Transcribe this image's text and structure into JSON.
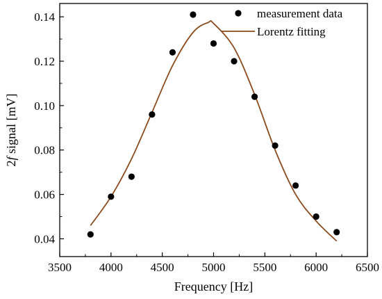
{
  "chart_data": {
    "type": "scatter",
    "xlabel": "Frequency [Hz]",
    "ylabel_prefix": "2",
    "ylabel_italic": "f",
    "ylabel_suffix": " signal [mV]",
    "xlim": [
      3500,
      6500
    ],
    "ylim": [
      0.032,
      0.146
    ],
    "xticks": [
      3500,
      4000,
      4500,
      5000,
      5500,
      6000,
      6500
    ],
    "yticks": [
      0.04,
      0.06,
      0.08,
      0.1,
      0.12,
      0.14
    ],
    "ytick_labels": [
      "0.04",
      "0.06",
      "0.08",
      "0.10",
      "0.12",
      "0.14"
    ],
    "grid": false,
    "legend_position": "top-right",
    "series": [
      {
        "name": "measurement data",
        "kind": "scatter",
        "color": "#000000",
        "x": [
          3800,
          4000,
          4200,
          4400,
          4600,
          4800,
          5000,
          5200,
          5400,
          5600,
          5800,
          6000,
          6200
        ],
        "y": [
          0.042,
          0.059,
          0.068,
          0.096,
          0.124,
          0.141,
          0.128,
          0.12,
          0.104,
          0.082,
          0.064,
          0.05,
          0.043
        ]
      },
      {
        "name": "Lorentz fitting",
        "kind": "line",
        "color": "#8B4A1C",
        "x": [
          3800,
          4000,
          4200,
          4400,
          4600,
          4800,
          4950,
          5000,
          5200,
          5400,
          5600,
          5800,
          6000,
          6200
        ],
        "y": [
          0.046,
          0.059,
          0.076,
          0.097,
          0.118,
          0.133,
          0.1375,
          0.137,
          0.126,
          0.105,
          0.08,
          0.06,
          0.048,
          0.039
        ]
      }
    ]
  }
}
